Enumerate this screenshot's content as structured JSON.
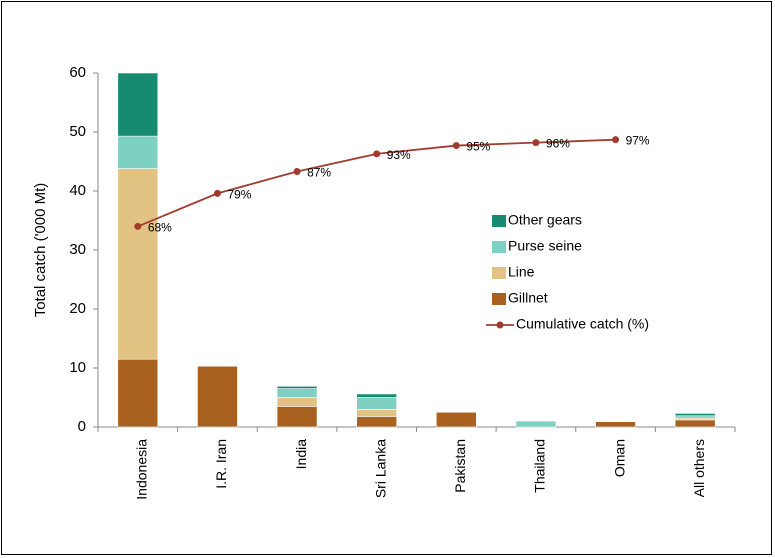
{
  "chart_data": {
    "type": "bar",
    "stacked": true,
    "categories": [
      "Indonesia",
      "I.R. Iran",
      "India",
      "Sri Lanka",
      "Pakistan",
      "Thailand",
      "Oman",
      "All others"
    ],
    "ylabel": "Total catch ('000 Mt)",
    "xlabel": "",
    "ylim": [
      0,
      60
    ],
    "yticks": [
      0,
      10,
      20,
      30,
      40,
      50,
      60
    ],
    "grid": false,
    "legend_position": "right",
    "series": [
      {
        "name": "Gillnet",
        "color": "#A8611E",
        "values": [
          11.5,
          10.3,
          3.5,
          1.8,
          2.5,
          0.0,
          0.9,
          1.2
        ]
      },
      {
        "name": "Line",
        "color": "#E2C384",
        "values": [
          32.3,
          0.0,
          1.5,
          1.2,
          0.0,
          0.0,
          0.0,
          0.3
        ]
      },
      {
        "name": "Purse seine",
        "color": "#7ED0C2",
        "values": [
          5.5,
          0.0,
          1.5,
          2.0,
          0.0,
          1.0,
          0.0,
          0.4
        ]
      },
      {
        "name": "Other gears",
        "color": "#178A72",
        "values": [
          10.7,
          0.0,
          0.4,
          0.6,
          0.0,
          0.0,
          0.0,
          0.4
        ]
      }
    ],
    "line_series": {
      "name": "Cumulative catch (%)",
      "color": "#A23B2E",
      "categories": [
        "Indonesia",
        "I.R. Iran",
        "India",
        "Sri Lanka",
        "Pakistan",
        "Thailand",
        "Oman"
      ],
      "values": [
        68,
        79,
        87,
        93,
        95,
        96,
        97
      ],
      "labels": [
        "68%",
        "79%",
        "87%",
        "93%",
        "95%",
        "96%",
        "97%"
      ],
      "axis_value_at_label_scale": [
        34,
        39.6,
        43.3,
        46.3,
        47.7,
        48.2,
        48.7
      ]
    }
  }
}
